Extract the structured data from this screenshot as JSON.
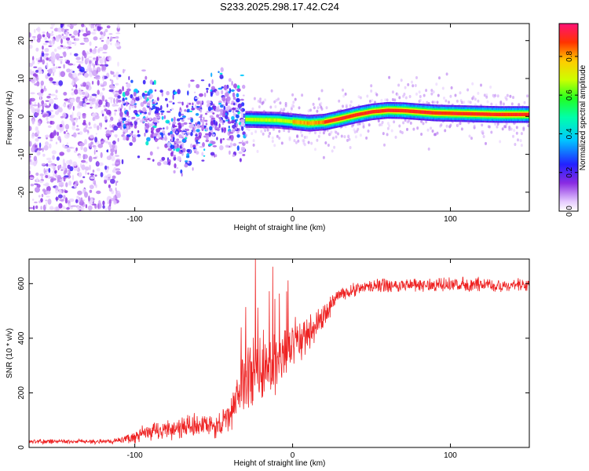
{
  "title": "S233.2025.298.17.42.C24",
  "chart_data": [
    {
      "type": "heatmap",
      "name": "spectrogram",
      "xlabel": "Height of straight line (km)",
      "ylabel": "Frequency (Hz)",
      "xlim": [
        -167,
        150
      ],
      "ylim": [
        -25,
        24.5
      ],
      "xticks": [
        -100,
        0,
        100
      ],
      "xtick_labels": [
        "-100",
        "0",
        "100"
      ],
      "yticks": [
        -20,
        -10,
        0,
        10,
        20
      ],
      "ytick_labels": [
        "-20",
        "-10",
        "0",
        "10",
        "20"
      ],
      "colorbar": {
        "label": "Normalized spectral amplitude",
        "range": [
          0,
          0.97
        ],
        "ticks": [
          0.0,
          0.2,
          0.4,
          0.6,
          0.8
        ],
        "tick_labels": [
          "0.0",
          "0.2",
          "0.4",
          "0.6",
          "0.8"
        ]
      },
      "ridge": {
        "x": [
          -30,
          -20,
          -10,
          0,
          10,
          20,
          30,
          40,
          50,
          60,
          70,
          80,
          90,
          100,
          110,
          120,
          130,
          140,
          150
        ],
        "frequency": [
          -0.8,
          -0.9,
          -1.0,
          -1.4,
          -1.8,
          -1.5,
          -0.6,
          0.4,
          1.2,
          1.6,
          1.5,
          1.2,
          0.9,
          0.8,
          0.7,
          0.6,
          0.5,
          0.5,
          0.5
        ]
      },
      "noise_floor_region_x": [
        -167,
        -110
      ],
      "scatter_region_x": [
        -110,
        -30
      ]
    },
    {
      "type": "line",
      "name": "snr",
      "xlabel": "Height of straight line (km)",
      "ylabel": "SNR (10 * v/v)",
      "xlim": [
        -167,
        150
      ],
      "ylim": [
        0,
        690
      ],
      "xticks": [
        -100,
        0,
        100
      ],
      "xtick_labels": [
        "-100",
        "0",
        "100"
      ],
      "yticks": [
        0,
        200,
        400,
        600
      ],
      "ytick_labels": [
        "0",
        "200",
        "400",
        "600"
      ],
      "color": "#ee2222",
      "envelope": {
        "x": [
          -167,
          -120,
          -110,
          -100,
          -90,
          -80,
          -70,
          -60,
          -50,
          -45,
          -40,
          -35,
          -30,
          -25,
          -20,
          -15,
          -10,
          -5,
          0,
          5,
          10,
          15,
          20,
          25,
          30,
          40,
          50,
          60,
          80,
          100,
          120,
          150
        ],
        "mean": [
          22,
          22,
          25,
          40,
          55,
          65,
          75,
          80,
          75,
          85,
          110,
          200,
          260,
          250,
          280,
          290,
          310,
          330,
          380,
          390,
          420,
          450,
          480,
          530,
          560,
          580,
          590,
          595,
          595,
          595,
          595,
          595
        ],
        "spread": [
          10,
          10,
          12,
          30,
          40,
          45,
          50,
          55,
          50,
          55,
          70,
          120,
          170,
          170,
          170,
          150,
          140,
          120,
          100,
          90,
          80,
          60,
          50,
          40,
          30,
          30,
          30,
          30,
          30,
          30,
          30,
          30
        ]
      }
    }
  ]
}
